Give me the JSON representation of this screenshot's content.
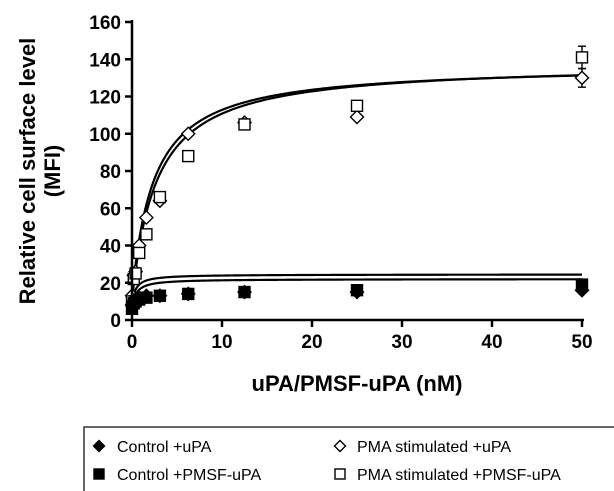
{
  "chart_data": {
    "type": "scatter",
    "xlabel": "uPA/PMSF-uPA (nM)",
    "ylabel": [
      "Relative cell surface level",
      "(MFI)"
    ],
    "xlim": [
      0,
      50
    ],
    "ylim": [
      0,
      160
    ],
    "xticks": [
      0,
      10,
      20,
      30,
      40,
      50
    ],
    "yticks": [
      0,
      20,
      40,
      60,
      80,
      100,
      120,
      140,
      160
    ],
    "grid": false,
    "legend_position": "bottom",
    "series": [
      {
        "name": "Control +uPA",
        "marker": "diamond-filled",
        "color": "#000000",
        "x": [
          0,
          0.2,
          0.4,
          0.8,
          1.6,
          3.1,
          6.25,
          12.5,
          25,
          50
        ],
        "y": [
          8,
          10,
          11,
          12,
          13,
          13,
          14,
          15,
          15,
          16
        ],
        "fit": {
          "bmax": 16.5,
          "kd": 0.4,
          "y0": 8
        }
      },
      {
        "name": "PMA stimulated +uPA",
        "marker": "diamond-open",
        "color": "#000000",
        "x": [
          0,
          0.2,
          0.4,
          0.8,
          1.6,
          3.1,
          6.25,
          12.5,
          25,
          50
        ],
        "y": [
          13,
          24,
          26,
          40,
          55,
          64,
          100,
          106,
          109,
          130
        ],
        "yerr": [
          0,
          0,
          0,
          0,
          0,
          0,
          0,
          0,
          0,
          5
        ],
        "fit": {
          "bmax": 125,
          "kd": 2.4,
          "y0": 12
        }
      },
      {
        "name": "Control +PMSF-uPA",
        "marker": "square-filled",
        "color": "#000000",
        "x": [
          0,
          0.2,
          0.4,
          0.8,
          1.6,
          3.1,
          6.25,
          12.5,
          25,
          50
        ],
        "y": [
          6,
          9,
          10,
          11,
          12,
          13,
          14,
          15,
          16,
          19
        ],
        "fit": {
          "bmax": 16,
          "kd": 0.45,
          "y0": 6
        }
      },
      {
        "name": "PMA stimulated +PMSF-uPA",
        "marker": "square-open",
        "color": "#000000",
        "x": [
          0,
          0.2,
          0.4,
          0.8,
          1.6,
          3.1,
          6.25,
          12.5,
          25,
          50
        ],
        "y": [
          10,
          22,
          25,
          36,
          46,
          66,
          88,
          105,
          115,
          141
        ],
        "yerr": [
          0,
          0,
          0,
          0,
          0,
          0,
          0,
          0,
          0,
          6
        ],
        "fit": {
          "bmax": 128,
          "kd": 2.7,
          "y0": 10
        }
      }
    ],
    "legend": {
      "rows": [
        [
          "Control +uPA",
          "PMA stimulated +uPA"
        ],
        [
          "Control +PMSF-uPA",
          "PMA stimulated +PMSF-uPA"
        ]
      ]
    }
  }
}
